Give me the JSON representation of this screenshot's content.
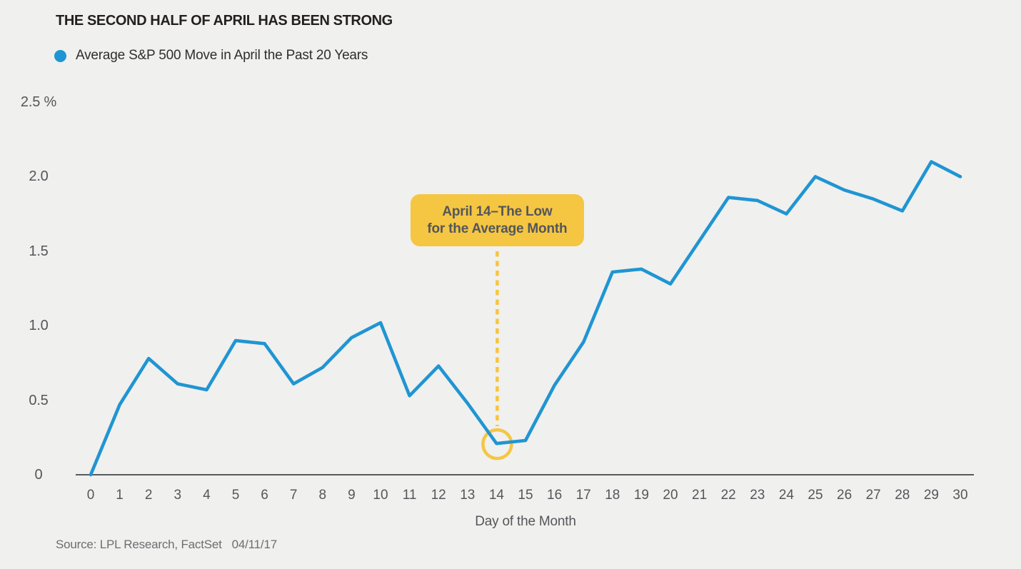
{
  "page": {
    "background_color": "#f0f0ee"
  },
  "header": {
    "title": "THE SECOND HALF OF APRIL HAS BEEN STRONG"
  },
  "legend": {
    "marker_color": "#2095d3",
    "label": "Average S&P 500 Move in April the Past 20 Years"
  },
  "chart_data": {
    "type": "line",
    "title": "THE SECOND HALF OF APRIL HAS BEEN STRONG",
    "xlabel": "Day of the Month",
    "ylabel": "%",
    "ylim": [
      0,
      2.5
    ],
    "grid": false,
    "legend_position": "top-left",
    "line_color": "#2095d3",
    "x": [
      0,
      1,
      2,
      3,
      4,
      5,
      6,
      7,
      8,
      9,
      10,
      11,
      12,
      13,
      14,
      15,
      16,
      17,
      18,
      19,
      20,
      21,
      22,
      23,
      24,
      25,
      26,
      27,
      28,
      29,
      30
    ],
    "series": [
      {
        "name": "Average S&P 500 Move in April the Past 20 Years",
        "color": "#2095d3",
        "values": [
          0,
          0.47,
          0.78,
          0.61,
          0.57,
          0.9,
          0.88,
          0.61,
          0.72,
          0.92,
          1.02,
          0.53,
          0.73,
          0.48,
          0.21,
          0.23,
          0.6,
          0.89,
          1.36,
          1.38,
          1.28,
          1.57,
          1.86,
          1.84,
          1.75,
          2.0,
          1.91,
          1.85,
          1.77,
          2.1,
          2.0
        ]
      }
    ],
    "ytick_values": [
      0,
      0.5,
      1.0,
      1.5,
      2.0,
      2.5
    ],
    "ytick_labels": [
      "0",
      "0.5",
      "1.0",
      "1.5",
      "2.0",
      "2.5 %"
    ],
    "annotation": {
      "line1": "April 14–The Low",
      "line2": "for the Average Month",
      "target_day": 14,
      "target_value": 0.21,
      "box_color": "#f5c642",
      "text_color": "#54565b"
    }
  },
  "axis": {
    "x_title": "Day of the Month"
  },
  "footer": {
    "source": "Source: LPL Research, FactSet",
    "date": "04/11/17"
  }
}
